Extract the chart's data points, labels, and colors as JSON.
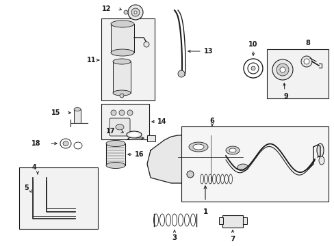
{
  "background_color": "#ffffff",
  "fig_width": 4.89,
  "fig_height": 3.6,
  "dpi": 100,
  "gray": "#1a1a1a",
  "lgray": "#888888",
  "fill_light": "#e8e8e8",
  "fill_mid": "#d0d0d0"
}
